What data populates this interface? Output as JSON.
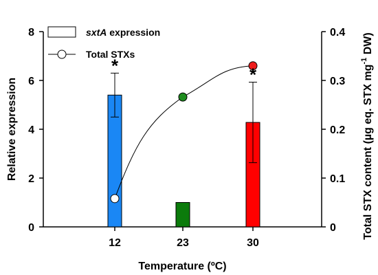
{
  "chart_data": {
    "type": "bar",
    "xlabel": "Temperature (ºC)",
    "ylabel": "Relative expression",
    "y2label_main": "Total STX content (µg eq. STX mg",
    "y2label_sup": "-1",
    "y2label_end": " DW)",
    "categories": [
      "12",
      "23",
      "30"
    ],
    "ylim": [
      0,
      8
    ],
    "y_ticks": [
      "0",
      "2",
      "4",
      "6",
      "8"
    ],
    "y2lim": [
      0,
      0.4
    ],
    "y2_ticks": [
      "0",
      "0.1",
      "0.2",
      "0.3",
      "0.4"
    ],
    "grid": false,
    "legend_position": "top-left",
    "series": [
      {
        "name": "sxtA expression",
        "legend_italic": "sxtA",
        "legend_rest": " expression",
        "axis": "left",
        "kind": "bar",
        "values": [
          5.4,
          1.0,
          4.28
        ],
        "errors": [
          0.9,
          null,
          1.65
        ],
        "colors": [
          "#1a87f5",
          "#0b7b0b",
          "#ff0000"
        ],
        "significance": [
          "*",
          "",
          "*"
        ]
      },
      {
        "name": "Total STXs",
        "axis": "right",
        "kind": "line",
        "values": [
          0.058,
          0.266,
          0.33
        ],
        "marker_colors": [
          "#ffffff",
          "#1e8c1e",
          "#ee1c1c"
        ]
      }
    ]
  }
}
